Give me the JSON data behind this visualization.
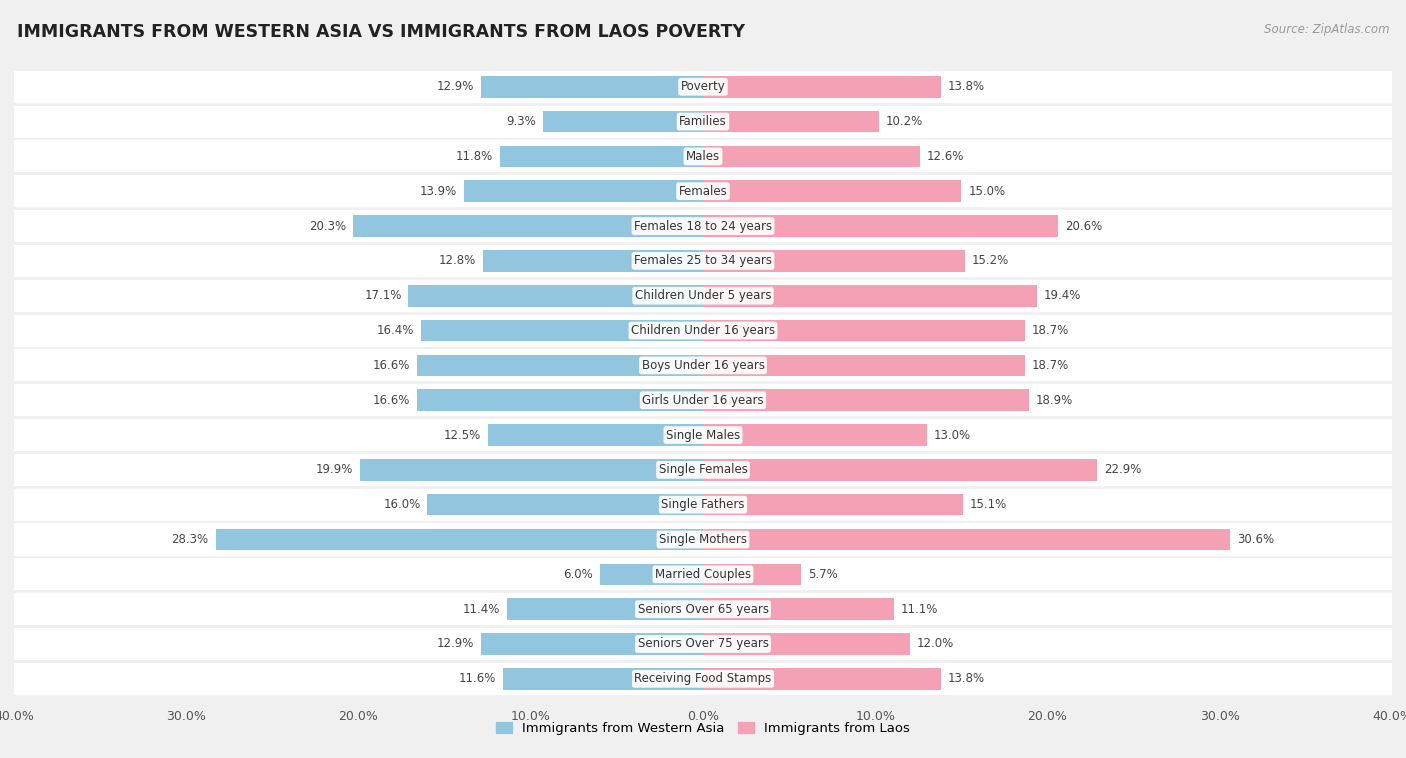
{
  "title": "IMMIGRANTS FROM WESTERN ASIA VS IMMIGRANTS FROM LAOS POVERTY",
  "source": "Source: ZipAtlas.com",
  "categories": [
    "Poverty",
    "Families",
    "Males",
    "Females",
    "Females 18 to 24 years",
    "Females 25 to 34 years",
    "Children Under 5 years",
    "Children Under 16 years",
    "Boys Under 16 years",
    "Girls Under 16 years",
    "Single Males",
    "Single Females",
    "Single Fathers",
    "Single Mothers",
    "Married Couples",
    "Seniors Over 65 years",
    "Seniors Over 75 years",
    "Receiving Food Stamps"
  ],
  "western_asia": [
    12.9,
    9.3,
    11.8,
    13.9,
    20.3,
    12.8,
    17.1,
    16.4,
    16.6,
    16.6,
    12.5,
    19.9,
    16.0,
    28.3,
    6.0,
    11.4,
    12.9,
    11.6
  ],
  "laos": [
    13.8,
    10.2,
    12.6,
    15.0,
    20.6,
    15.2,
    19.4,
    18.7,
    18.7,
    18.9,
    13.0,
    22.9,
    15.1,
    30.6,
    5.7,
    11.1,
    12.0,
    13.8
  ],
  "western_asia_color": "#92c5de",
  "laos_color": "#f4a0b5",
  "background_color": "#f0f0f0",
  "row_bg_color": "#ffffff",
  "xlim": 40.0,
  "legend_label_west": "Immigrants from Western Asia",
  "legend_label_laos": "Immigrants from Laos"
}
